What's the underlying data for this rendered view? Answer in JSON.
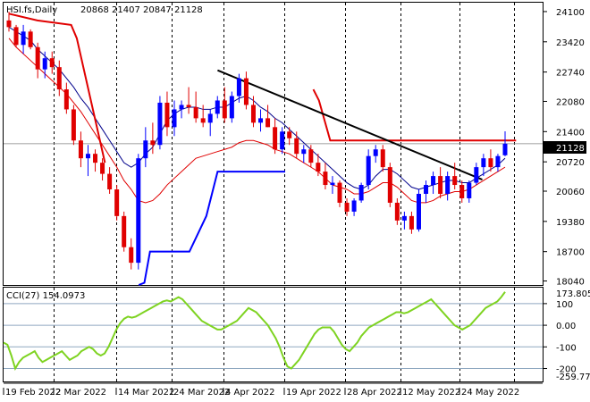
{
  "header": {
    "symbol": "HSI.fs,Daily",
    "ohlc": "20868 21407 20847 21128"
  },
  "price_panel": {
    "current_price_label": "21128",
    "y_ticks": [
      "24100",
      "23420",
      "22740",
      "22080",
      "21400",
      "20720",
      "20060",
      "19380",
      "18700",
      "18040"
    ]
  },
  "cci_panel": {
    "title": "CCI(27) 154.0973",
    "top_value": "173.8057",
    "bottom_value": "-259.778",
    "y_ticks": [
      "100",
      "0.00",
      "-100",
      "-200"
    ]
  },
  "x_labels": [
    "19 Feb 2022",
    "2 Mar 2022",
    "14 Mar 2022",
    "24 Mar 2022",
    "4 Apr 2022",
    "19 Apr 2022",
    "28 Apr 2022",
    "12 May 2022",
    "24 May 2022"
  ],
  "colors": {
    "bull": "#0000ff",
    "bear": "#e00000",
    "ma": "#e00000",
    "ma_blue": "#00008b",
    "trendline": "#000000",
    "cci": "#7ed321",
    "price_tag_bg": "#000000"
  },
  "chart_data": [
    {
      "type": "candlestick",
      "title": "HSI.fs,Daily",
      "ylim": [
        17950,
        24300
      ],
      "candles": [
        [
          23900,
          24100,
          23650,
          23750
        ],
        [
          23750,
          23800,
          23300,
          23350
        ],
        [
          23350,
          23800,
          23150,
          23650
        ],
        [
          23650,
          23700,
          23250,
          23300
        ],
        [
          23300,
          23400,
          22600,
          22800
        ],
        [
          22800,
          23200,
          22600,
          23050
        ],
        [
          23050,
          23200,
          22700,
          22850
        ],
        [
          22850,
          23000,
          22200,
          22350
        ],
        [
          22350,
          22500,
          21800,
          21900
        ],
        [
          21900,
          22000,
          21100,
          21200
        ],
        [
          21200,
          21400,
          20600,
          20800
        ],
        [
          20800,
          21100,
          20400,
          20900
        ],
        [
          20900,
          21000,
          20500,
          20700
        ],
        [
          20700,
          20800,
          20300,
          20450
        ],
        [
          20450,
          20600,
          20000,
          20100
        ],
        [
          20100,
          20200,
          19400,
          19500
        ],
        [
          19500,
          19600,
          18700,
          18800
        ],
        [
          18800,
          19000,
          18300,
          18450
        ],
        [
          18450,
          20900,
          18300,
          20800
        ],
        [
          20800,
          21500,
          20600,
          21200
        ],
        [
          21200,
          21600,
          20900,
          21100
        ],
        [
          21100,
          22200,
          21000,
          22050
        ],
        [
          22050,
          22300,
          21300,
          21500
        ],
        [
          21500,
          22100,
          21300,
          21900
        ],
        [
          21900,
          22100,
          21700,
          22000
        ],
        [
          22000,
          22400,
          21800,
          21950
        ],
        [
          21950,
          22300,
          21600,
          21700
        ],
        [
          21700,
          22000,
          21500,
          21600
        ],
        [
          21600,
          21900,
          21300,
          21800
        ],
        [
          21800,
          22200,
          21700,
          22100
        ],
        [
          22100,
          22400,
          21600,
          21700
        ],
        [
          21700,
          22300,
          21600,
          22200
        ],
        [
          22200,
          22700,
          22050,
          22600
        ],
        [
          22600,
          22750,
          21900,
          22000
        ],
        [
          22000,
          22200,
          21500,
          21600
        ],
        [
          21600,
          21900,
          21400,
          21700
        ],
        [
          21700,
          22000,
          21500,
          21500
        ],
        [
          21500,
          21700,
          20900,
          21000
        ],
        [
          21000,
          21500,
          20900,
          21400
        ],
        [
          21400,
          21500,
          21100,
          21250
        ],
        [
          21250,
          21400,
          20800,
          20900
        ],
        [
          20900,
          21100,
          20700,
          21000
        ],
        [
          21000,
          21100,
          20600,
          20700
        ],
        [
          20700,
          20900,
          20400,
          20500
        ],
        [
          20500,
          20700,
          20100,
          20200
        ],
        [
          20200,
          20400,
          20000,
          20250
        ],
        [
          20250,
          20300,
          19700,
          19800
        ],
        [
          19800,
          19900,
          19500,
          19600
        ],
        [
          19600,
          19900,
          19500,
          19850
        ],
        [
          19850,
          20250,
          19800,
          20200
        ],
        [
          20200,
          21000,
          20100,
          20850
        ],
        [
          20850,
          21100,
          20700,
          21000
        ],
        [
          21000,
          21100,
          20500,
          20600
        ],
        [
          20600,
          20700,
          19700,
          19800
        ],
        [
          19800,
          19900,
          19300,
          19400
        ],
        [
          19400,
          19600,
          19200,
          19500
        ],
        [
          19500,
          19600,
          19100,
          19200
        ],
        [
          19200,
          20100,
          19150,
          20000
        ],
        [
          20000,
          20300,
          19800,
          20200
        ],
        [
          20200,
          20500,
          20000,
          20400
        ],
        [
          20400,
          20600,
          19900,
          20000
        ],
        [
          20000,
          20500,
          19850,
          20400
        ],
        [
          20400,
          20700,
          20100,
          20200
        ],
        [
          20200,
          20300,
          19800,
          19900
        ],
        [
          19900,
          20300,
          19800,
          20250
        ],
        [
          20250,
          20700,
          20200,
          20600
        ],
        [
          20600,
          20900,
          20400,
          20800
        ],
        [
          20800,
          21000,
          20500,
          20600
        ],
        [
          20600,
          20900,
          20500,
          20850
        ],
        [
          20868,
          21407,
          20847,
          21128
        ]
      ],
      "ma_red": [
        23500,
        23300,
        23150,
        23000,
        22850,
        22700,
        22550,
        22400,
        22250,
        22050,
        21850,
        21600,
        21350,
        21100,
        20850,
        20600,
        20300,
        20100,
        19850,
        19800,
        19850,
        20000,
        20200,
        20350,
        20500,
        20650,
        20800,
        20850,
        20900,
        20950,
        21000,
        21050,
        21150,
        21200,
        21200,
        21150,
        21100,
        21000,
        20950,
        20900,
        20800,
        20700,
        20600,
        20500,
        20350,
        20200,
        20150,
        20100,
        20000,
        20000,
        20050,
        20150,
        20250,
        20250,
        20150,
        20000,
        19850,
        19800,
        19800,
        19850,
        19950,
        20000,
        20050,
        20050,
        20100,
        20200,
        20300,
        20400,
        20500,
        20600
      ],
      "ma_blue": [
        23750,
        23650,
        23550,
        23450,
        23250,
        23100,
        22950,
        22800,
        22600,
        22400,
        22150,
        21950,
        21700,
        21450,
        21200,
        20950,
        20700,
        20600,
        20700,
        20900,
        21050,
        21350,
        21650,
        21800,
        21900,
        21950,
        21950,
        21900,
        21900,
        21950,
        21950,
        22050,
        22150,
        22200,
        22100,
        21950,
        21850,
        21700,
        21600,
        21450,
        21300,
        21150,
        21000,
        20850,
        20700,
        20550,
        20400,
        20250,
        20150,
        20100,
        20200,
        20400,
        20550,
        20550,
        20450,
        20300,
        20150,
        20100,
        20150,
        20200,
        20250,
        20300,
        20300,
        20250,
        20250,
        20350,
        20450,
        20550,
        20650,
        20800
      ],
      "red_step": [
        [
          1,
          24050
        ],
        [
          6,
          23900
        ],
        [
          12,
          23800
        ],
        [
          13,
          23500
        ],
        [
          18,
          20700
        ],
        [
          55,
          null
        ],
        [
          55,
          22350
        ],
        [
          56,
          22100
        ],
        [
          58,
          21200
        ],
        [
          91,
          21200
        ]
      ],
      "blue_step": [
        [
          24,
          17950
        ],
        [
          25,
          18000
        ],
        [
          26,
          18700
        ],
        [
          33,
          18700
        ],
        [
          36,
          19500
        ],
        [
          38,
          20500
        ],
        [
          50,
          20500
        ]
      ],
      "trendline": [
        [
          38,
          22780
        ],
        [
          85,
          20320
        ]
      ]
    },
    {
      "type": "line",
      "title": "CCI(27) 154.0973",
      "ylim": [
        -259.778,
        173.8057
      ],
      "values": [
        -80,
        -90,
        -140,
        -200,
        -170,
        -150,
        -140,
        -130,
        -120,
        -150,
        -170,
        -160,
        -150,
        -140,
        -130,
        -120,
        -140,
        -160,
        -150,
        -140,
        -120,
        -110,
        -100,
        -110,
        -130,
        -140,
        -130,
        -100,
        -60,
        -20,
        10,
        30,
        40,
        35,
        40,
        50,
        60,
        70,
        80,
        90,
        100,
        110,
        115,
        110,
        120,
        130,
        120,
        100,
        80,
        60,
        40,
        20,
        10,
        0,
        -10,
        -20,
        -20,
        -10,
        0,
        10,
        20,
        40,
        60,
        80,
        70,
        60,
        40,
        20,
        0,
        -30,
        -60,
        -100,
        -150,
        -190,
        -200,
        -180,
        -160,
        -130,
        -100,
        -70,
        -40,
        -20,
        -10,
        -10,
        -10,
        -30,
        -60,
        -90,
        -110,
        -120,
        -100,
        -80,
        -50,
        -30,
        -10,
        0,
        10,
        20,
        30,
        40,
        50,
        60,
        60,
        55,
        60,
        70,
        80,
        90,
        100,
        110,
        120,
        100,
        80,
        60,
        40,
        20,
        0,
        -10,
        -20,
        -10,
        0,
        20,
        40,
        60,
        80,
        90,
        100,
        110,
        130,
        154.0973
      ],
      "reference_lines": [
        100,
        0,
        -100,
        -200
      ]
    }
  ]
}
